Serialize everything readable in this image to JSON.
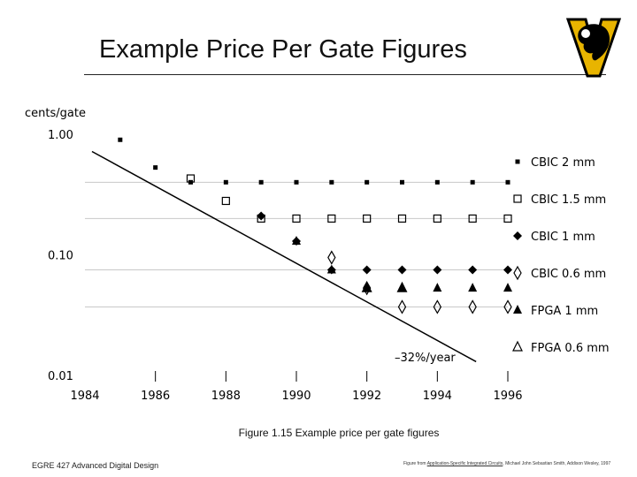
{
  "slide": {
    "title": "Example Price Per Gate Figures",
    "caption": "Figure 1.15 Example price per gate figures",
    "footer_left": "EGRE 427 Advanced Digital Design",
    "footer_right_prefix": "Figure from ",
    "footer_right_book": "Application-Specific Integrated Circuits",
    "footer_right_suffix": ", Michael John Sebastian Smith, Addison Wesley, 1997"
  },
  "colors": {
    "ink": "#000000",
    "grid": "#c8c8c8",
    "logo_gold": "#e8b400"
  },
  "chart_data": {
    "type": "scatter",
    "ylabel": "cents/gate",
    "y_scale": "log",
    "ylim": [
      0.01,
      1.0
    ],
    "xlim": [
      1984,
      1996
    ],
    "x_ticks": [
      "1984",
      "1986",
      "1988",
      "1990",
      "1992",
      "1994",
      "1996"
    ],
    "y_ticks": [
      "1.00",
      "0.10",
      "0.01"
    ],
    "grid": true,
    "legend_position": "right",
    "annotation": "–32%/year",
    "trend": {
      "name": "–32%/year",
      "x": [
        1984.2,
        1995.1
      ],
      "y": [
        0.72,
        0.013
      ]
    },
    "series": [
      {
        "name": "CBIC 2 mm",
        "marker": "square-filled-small",
        "x": [
          1985,
          1986,
          1987,
          1988,
          1989,
          1990,
          1991,
          1992,
          1993,
          1994,
          1995,
          1996
        ],
        "y": [
          0.9,
          0.53,
          0.4,
          0.4,
          0.4,
          0.4,
          0.4,
          0.4,
          0.4,
          0.4,
          0.4,
          0.4
        ]
      },
      {
        "name": "CBIC 1.5 mm",
        "marker": "square-open",
        "x": [
          1987,
          1988,
          1989,
          1990,
          1991,
          1992,
          1993,
          1994,
          1995,
          1996
        ],
        "y": [
          0.43,
          0.28,
          0.2,
          0.2,
          0.2,
          0.2,
          0.2,
          0.2,
          0.2,
          0.2
        ]
      },
      {
        "name": "CBIC 1 mm",
        "marker": "diamond-filled",
        "x": [
          1989,
          1990,
          1991,
          1992,
          1993,
          1994,
          1995,
          1996
        ],
        "y": [
          0.21,
          0.13,
          0.075,
          0.075,
          0.075,
          0.075,
          0.075,
          0.075
        ]
      },
      {
        "name": "CBIC 0.6 mm",
        "marker": "diamond-open",
        "x": [
          1991,
          1992,
          1993,
          1994,
          1995,
          1996
        ],
        "y": [
          0.095,
          0.053,
          0.037,
          0.037,
          0.037,
          0.037
        ]
      },
      {
        "name": "FPGA 1 mm",
        "marker": "triangle-filled",
        "x": [
          1990,
          1991,
          1992,
          1993,
          1994,
          1995,
          1996
        ],
        "y": [
          0.13,
          0.075,
          0.053,
          0.053,
          0.053,
          0.053,
          0.053
        ]
      },
      {
        "name": "FPGA 0.6 mm",
        "marker": "triangle-open",
        "x": [
          1992,
          1993
        ],
        "y": [
          0.053,
          0.053
        ]
      }
    ]
  }
}
